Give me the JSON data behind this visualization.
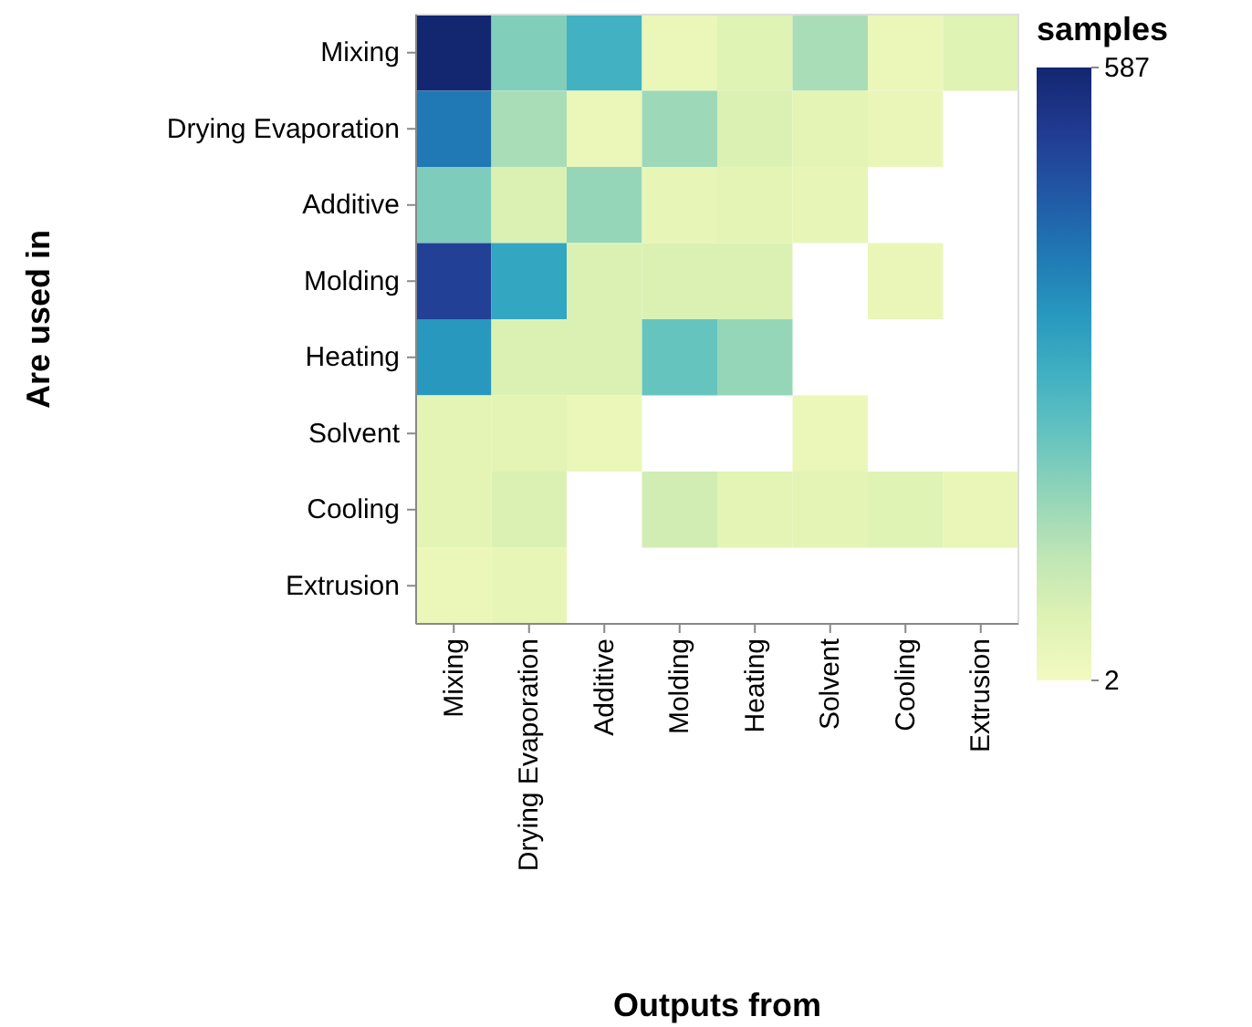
{
  "chart_data": {
    "type": "heatmap",
    "xlabel": "Outputs from",
    "ylabel": "Are used in",
    "clabel": "samples",
    "categories": [
      "Mixing",
      "Drying Evaporation",
      "Additive",
      "Molding",
      "Heating",
      "Solvent",
      "Cooling",
      "Extrusion"
    ],
    "y_categories": [
      "Mixing",
      "Drying Evaporation",
      "Additive",
      "Molding",
      "Heating",
      "Solvent",
      "Cooling",
      "Extrusion"
    ],
    "cells": [
      [
        587,
        200,
        290,
        30,
        60,
        150,
        30,
        60
      ],
      [
        410,
        150,
        30,
        165,
        70,
        50,
        35,
        null
      ],
      [
        205,
        70,
        175,
        40,
        50,
        40,
        null,
        null
      ],
      [
        515,
        320,
        70,
        70,
        70,
        null,
        35,
        null
      ],
      [
        350,
        70,
        70,
        235,
        175,
        null,
        null,
        null
      ],
      [
        50,
        50,
        30,
        null,
        null,
        30,
        null,
        null
      ],
      [
        50,
        70,
        null,
        90,
        50,
        50,
        60,
        35
      ],
      [
        30,
        40,
        null,
        null,
        null,
        null,
        null,
        null
      ]
    ],
    "clim": [
      2,
      587
    ],
    "cticks": [
      2,
      587
    ]
  }
}
